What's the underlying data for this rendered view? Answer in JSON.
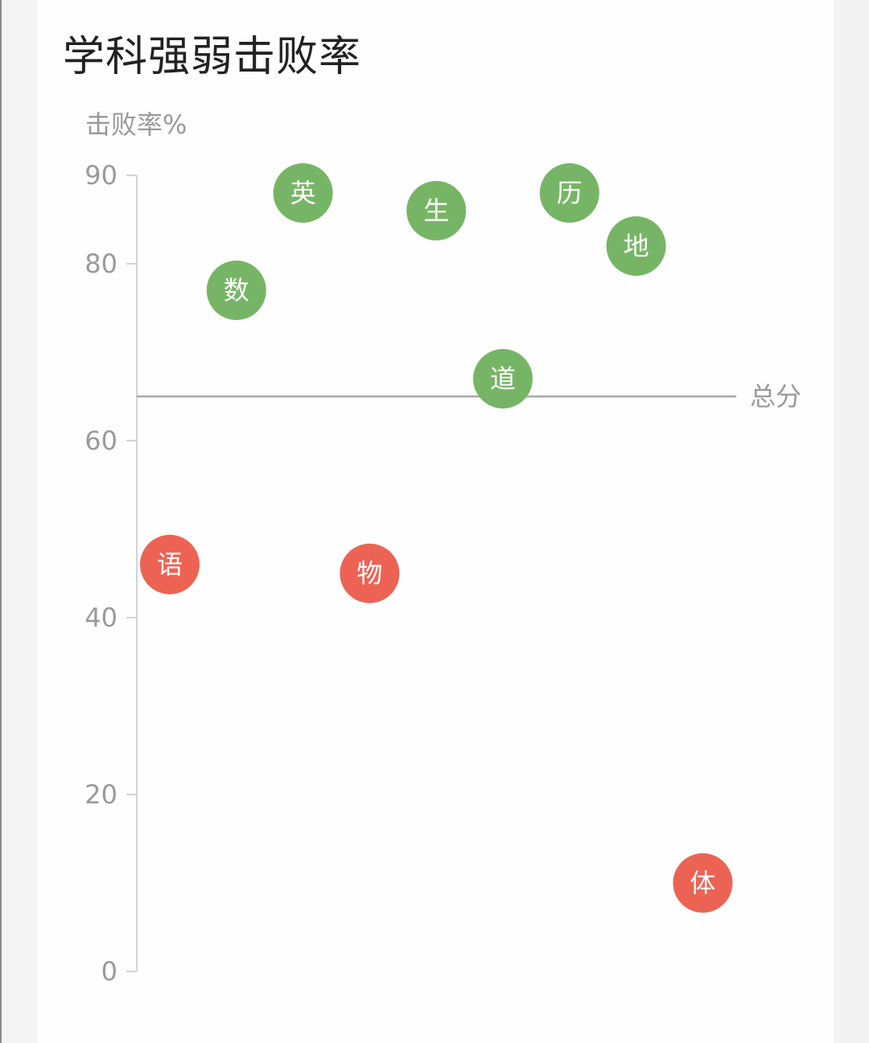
{
  "title": "学科强弱击败率",
  "chart_data": {
    "type": "scatter",
    "ylabel": "击败率%",
    "ylim": [
      0,
      90
    ],
    "yticks": [
      0,
      20,
      40,
      60,
      80,
      90
    ],
    "reference_line": {
      "label": "总分",
      "value": 65
    },
    "colors": {
      "above": "#77b566",
      "below": "#ec6354"
    },
    "points": [
      {
        "label": "语",
        "order": 1,
        "value": 46
      },
      {
        "label": "数",
        "order": 2,
        "value": 77
      },
      {
        "label": "英",
        "order": 3,
        "value": 88
      },
      {
        "label": "物",
        "order": 4,
        "value": 45
      },
      {
        "label": "生",
        "order": 5,
        "value": 86
      },
      {
        "label": "道",
        "order": 6,
        "value": 67
      },
      {
        "label": "历",
        "order": 7,
        "value": 88
      },
      {
        "label": "地",
        "order": 8,
        "value": 82
      },
      {
        "label": "体",
        "order": 9,
        "value": 10
      }
    ]
  }
}
